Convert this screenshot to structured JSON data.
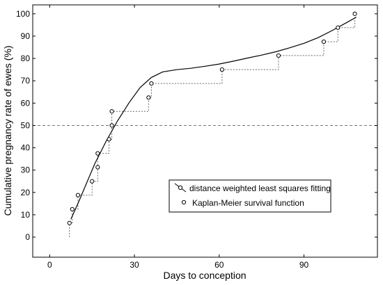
{
  "chart_data": {
    "type": "line",
    "xlabel": "Days to conception",
    "ylabel": "Cumulative pregnancy rate of ewes (%)",
    "xlim": [
      -6,
      116
    ],
    "ylim": [
      -9,
      104
    ],
    "x_ticks": [
      0,
      30,
      60,
      90
    ],
    "y_ticks": [
      0,
      10,
      20,
      30,
      40,
      50,
      60,
      70,
      80,
      90,
      100
    ],
    "grid": false,
    "reference_line": {
      "y": 50,
      "style": "dashed"
    },
    "legend_position": "lower-right",
    "series": [
      {
        "name": "distance weighted least squares fitting",
        "style": "solid line",
        "points": [
          [
            7.5,
            8
          ],
          [
            10,
            15
          ],
          [
            13,
            24
          ],
          [
            16,
            33
          ],
          [
            20,
            43
          ],
          [
            24,
            52
          ],
          [
            28,
            60
          ],
          [
            32,
            67
          ],
          [
            36,
            71.5
          ],
          [
            40,
            74
          ],
          [
            45,
            75
          ],
          [
            50,
            75.6
          ],
          [
            55,
            76.5
          ],
          [
            60,
            77.5
          ],
          [
            65,
            78.8
          ],
          [
            70,
            80.2
          ],
          [
            75,
            81.5
          ],
          [
            80,
            83
          ],
          [
            85,
            84.8
          ],
          [
            90,
            86.8
          ],
          [
            95,
            89.3
          ],
          [
            100,
            92.5
          ],
          [
            105,
            96
          ],
          [
            108.5,
            98.5
          ]
        ]
      },
      {
        "name": "Kaplan-Meier survival function",
        "style": "open circles with dashed step line",
        "points": [
          [
            7,
            6.3
          ],
          [
            8,
            12.5
          ],
          [
            10,
            18.8
          ],
          [
            15,
            25
          ],
          [
            17,
            31.3
          ],
          [
            17,
            37.5
          ],
          [
            21,
            43.8
          ],
          [
            22,
            50
          ],
          [
            22,
            56.3
          ],
          [
            35,
            62.5
          ],
          [
            36,
            68.8
          ],
          [
            61,
            75
          ],
          [
            81,
            81.3
          ],
          [
            97,
            87.5
          ],
          [
            102,
            93.8
          ],
          [
            108,
            100
          ]
        ]
      }
    ]
  }
}
